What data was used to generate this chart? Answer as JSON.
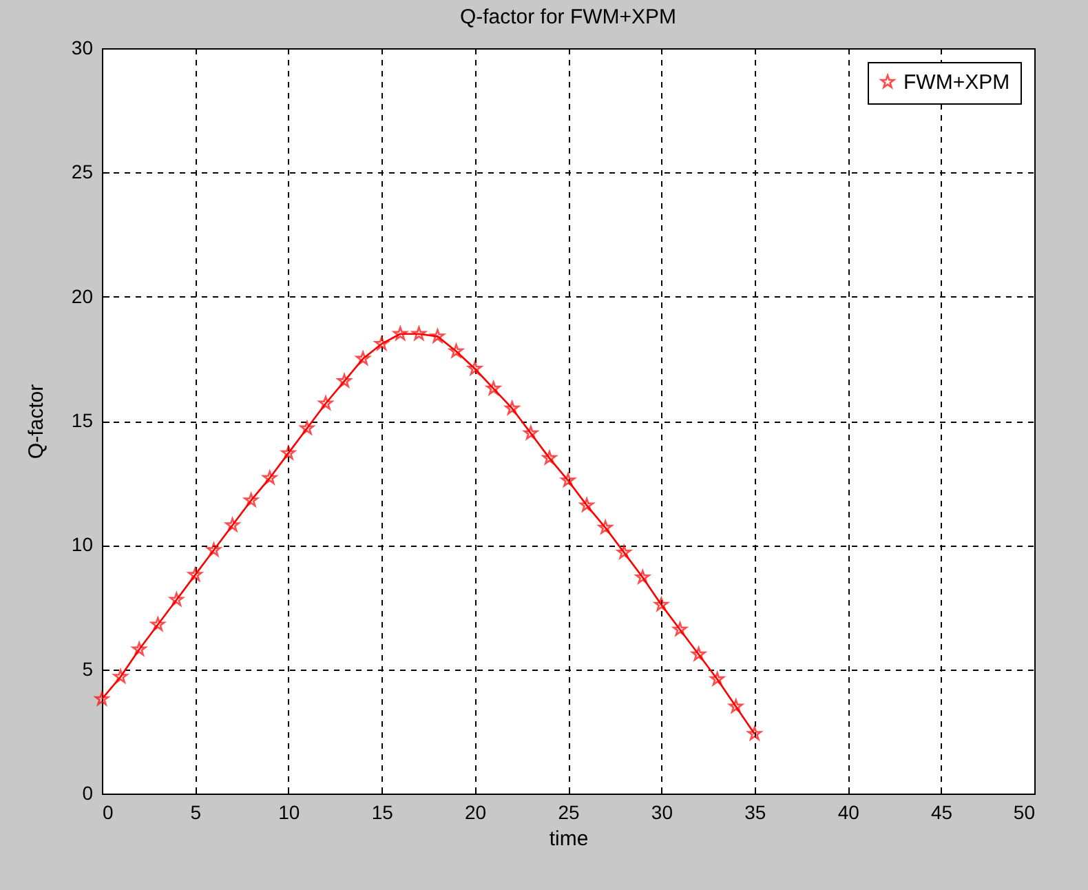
{
  "chart_data": {
    "type": "line",
    "title": "Q-factor for FWM+XPM",
    "xlabel": "time",
    "ylabel": "Q-factor",
    "x": [
      0,
      1,
      2,
      3,
      4,
      5,
      6,
      7,
      8,
      9,
      10,
      11,
      12,
      13,
      14,
      15,
      16,
      17,
      18,
      19,
      20,
      21,
      22,
      23,
      24,
      25,
      26,
      27,
      28,
      29,
      30,
      31,
      32,
      33,
      34,
      35
    ],
    "series": [
      {
        "name": "FWM+XPM",
        "color": "#ff0000",
        "values": [
          3.8,
          4.7,
          5.8,
          6.8,
          7.8,
          8.8,
          9.8,
          10.8,
          11.8,
          12.7,
          13.7,
          14.7,
          15.7,
          16.6,
          17.5,
          18.1,
          18.5,
          18.5,
          18.4,
          17.8,
          17.1,
          16.3,
          15.5,
          14.5,
          13.5,
          12.6,
          11.6,
          10.7,
          9.7,
          8.7,
          7.6,
          6.6,
          5.6,
          4.6,
          3.5,
          2.4
        ]
      }
    ],
    "xlim": [
      0,
      50
    ],
    "xticks": [
      0,
      5,
      10,
      15,
      20,
      25,
      30,
      35,
      40,
      45,
      50
    ],
    "ylim": [
      0,
      30
    ],
    "yticks": [
      0,
      5,
      10,
      15,
      20,
      25,
      30
    ],
    "grid": true,
    "legend": "top right",
    "marker": "star",
    "line_style": "solid"
  }
}
